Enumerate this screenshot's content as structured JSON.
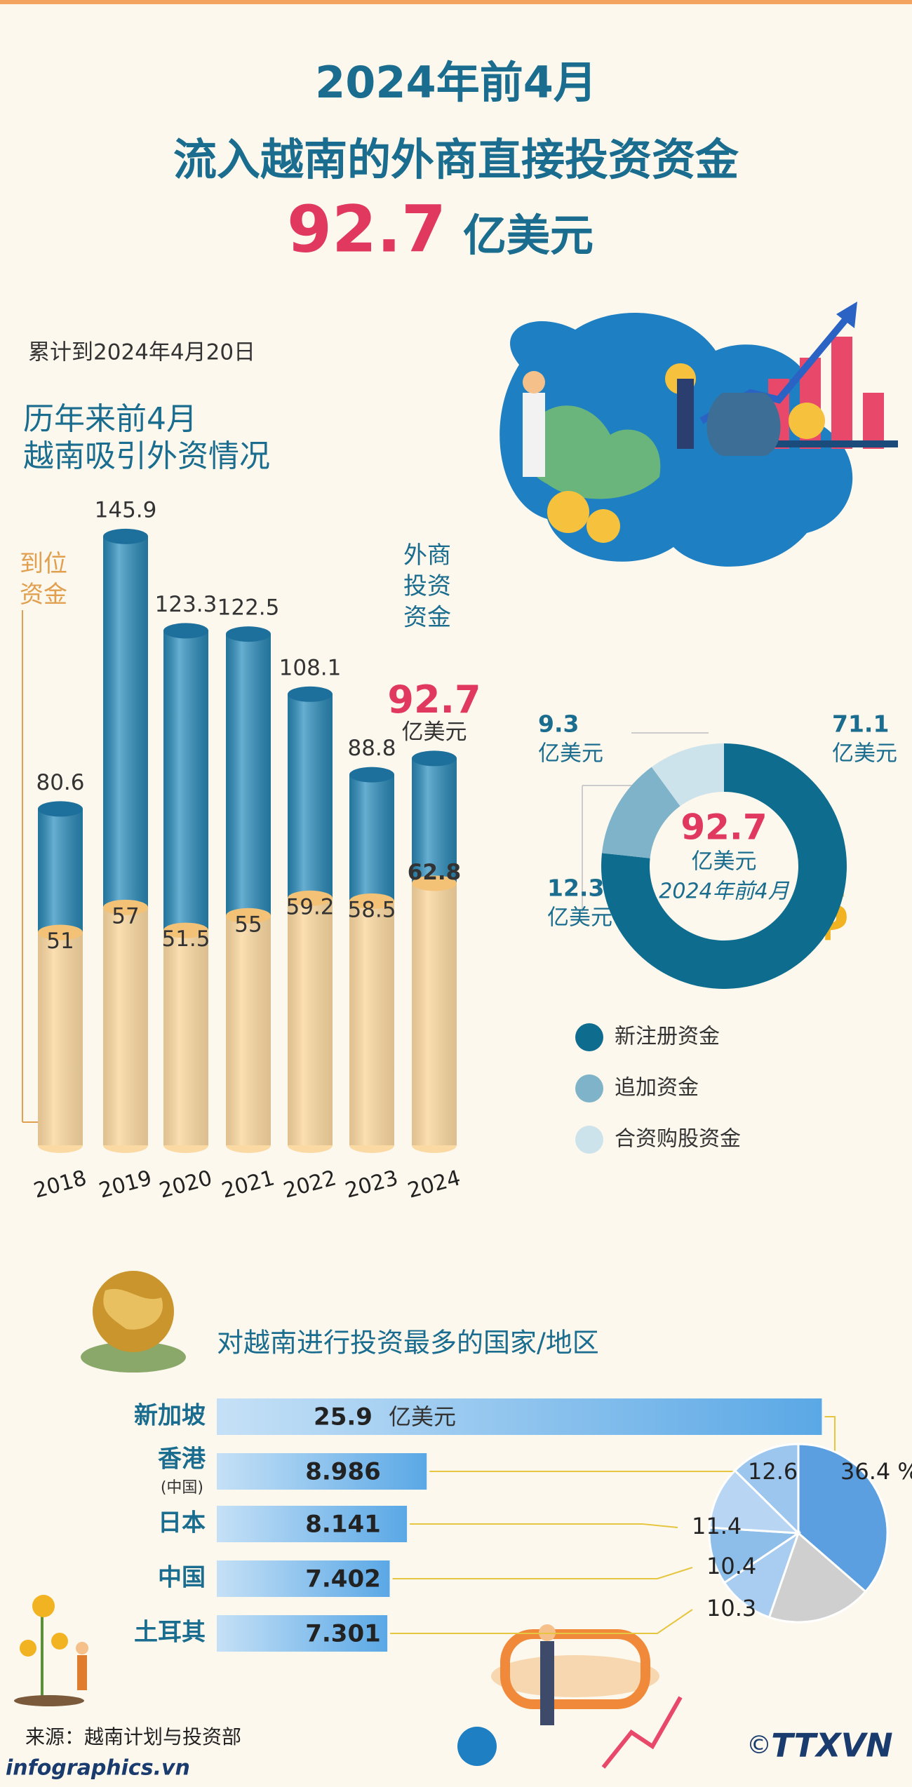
{
  "header": {
    "title_line1": "2024年前4月",
    "title_line2": "流入越南的外商直接投资资金",
    "amount": "92.7",
    "amount_unit": "亿美元"
  },
  "date_note": "累计到2024年4月20日",
  "chart_data": [
    {
      "type": "cylinder_bar",
      "title_lines": [
        "历年来前4月",
        "越南吸引外资情况"
      ],
      "categories": [
        "2018",
        "2019",
        "2020",
        "2021",
        "2022",
        "2023",
        "2024"
      ],
      "unit": "亿美元",
      "series": [
        {
          "name": "外商投资资金",
          "color": "#2b8fc0",
          "values": [
            80.6,
            145.9,
            123.3,
            122.5,
            108.1,
            88.8,
            92.7
          ]
        },
        {
          "name": "到位资金",
          "color": "#fbd9a2",
          "values": [
            51,
            57,
            51.5,
            55,
            59.2,
            58.5,
            62.8
          ]
        }
      ]
    },
    {
      "type": "donut",
      "center_value": "92.7",
      "center_label": "2024年前4月",
      "unit": "亿美元",
      "categories": [
        "新注册资金",
        "追加资金",
        "合资购股资金"
      ],
      "values": [
        71.1,
        12.3,
        9.3
      ],
      "colors": [
        "#0e6d8f",
        "#7fb3c9",
        "#cde3ec"
      ]
    },
    {
      "type": "hbar",
      "title": "对越南进行投资最多的国家/地区",
      "categories": [
        "新加坡",
        "香港",
        "日本",
        "中国",
        "土耳其"
      ],
      "category_notes": [
        null,
        "(中国)",
        null,
        null,
        null
      ],
      "values": [
        25.9,
        8.986,
        8.141,
        7.402,
        7.301
      ],
      "unit": "亿美元",
      "color": "#5aa8e6"
    },
    {
      "type": "pie",
      "values": [
        36.4,
        18.9,
        10.3,
        10.4,
        11.4,
        12.6
      ],
      "value_labels": [
        "36.4 %",
        null,
        "10.3",
        "10.4",
        "11.4",
        "12.6"
      ],
      "colors": [
        "#5b9fe0",
        "#cfcfcf",
        "#a9cdf0",
        "#8dbde9",
        "#b8d6f3",
        "#9cc6ee"
      ]
    }
  ],
  "footer": {
    "source": "来源：越南计划与投资部",
    "site": "infographics.vn",
    "copyright": "©",
    "logo": "TTXVN"
  }
}
